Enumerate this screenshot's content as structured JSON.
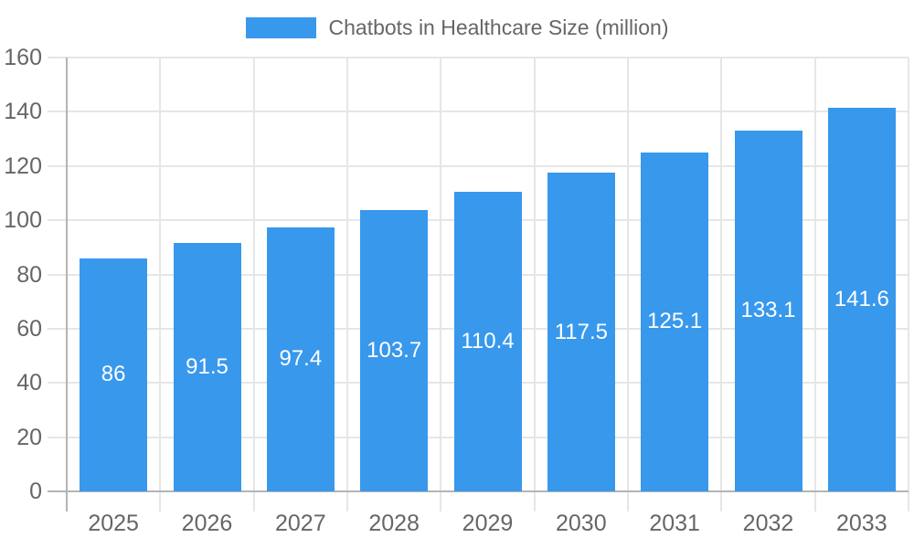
{
  "chart_data": {
    "type": "bar",
    "title": "",
    "legend": {
      "label": "Chatbots in Healthcare Size (million)",
      "position": "top"
    },
    "categories": [
      "2025",
      "2026",
      "2027",
      "2028",
      "2029",
      "2030",
      "2031",
      "2032",
      "2033"
    ],
    "series": [
      {
        "name": "Chatbots in Healthcare Size (million)",
        "values": [
          86,
          91.5,
          97.4,
          103.7,
          110.4,
          117.5,
          125.1,
          133.1,
          141.6
        ]
      }
    ],
    "bar_value_labels": [
      "86",
      "91.5",
      "97.4",
      "103.7",
      "110.4",
      "117.5",
      "125.1",
      "133.1",
      "141.6"
    ],
    "xlabel": "",
    "ylabel": "",
    "ylim": [
      0,
      160
    ],
    "ytick_step": 20,
    "yticks": [
      "0",
      "20",
      "40",
      "60",
      "80",
      "100",
      "120",
      "140",
      "160"
    ],
    "grid": true,
    "colors": {
      "bar": "#3898ec",
      "grid": "#e6e6e6",
      "axis": "#b4b4b4",
      "tick_text": "#666666",
      "legend_text": "#666666",
      "bar_label": "#ffffff"
    }
  }
}
